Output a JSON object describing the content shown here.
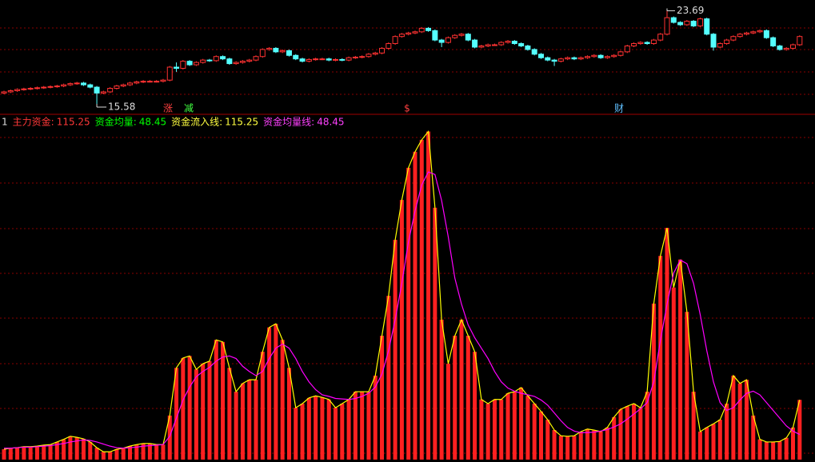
{
  "chart_data": [
    {
      "type": "candlestick",
      "ylim": [
        14.9,
        24.4
      ],
      "up_color": "#ff3232",
      "down_color": "#54ffff",
      "open": [
        16.5,
        16.6,
        16.7,
        16.8,
        16.85,
        16.9,
        16.95,
        17.0,
        17.05,
        17.1,
        17.2,
        17.3,
        17.35,
        17.2,
        17.0,
        16.5,
        16.6,
        16.9,
        17.1,
        17.2,
        17.35,
        17.45,
        17.5,
        17.5,
        17.5,
        17.6,
        18.7,
        18.6,
        19.2,
        18.9,
        19.1,
        19.3,
        19.25,
        19.6,
        19.4,
        19.0,
        19.1,
        19.2,
        19.3,
        19.6,
        20.2,
        20.3,
        20.0,
        20.1,
        19.7,
        19.4,
        19.2,
        19.35,
        19.4,
        19.4,
        19.3,
        19.35,
        19.3,
        19.5,
        19.55,
        19.6,
        19.8,
        19.9,
        20.3,
        20.7,
        21.3,
        21.5,
        21.6,
        21.7,
        22.0,
        21.8,
        21.0,
        20.8,
        21.2,
        21.4,
        21.5,
        21.0,
        20.4,
        20.5,
        20.6,
        20.6,
        20.8,
        20.9,
        20.7,
        20.5,
        20.2,
        19.8,
        19.5,
        19.3,
        19.2,
        19.4,
        19.5,
        19.4,
        19.5,
        19.6,
        19.7,
        19.5,
        19.6,
        19.7,
        20.0,
        20.5,
        20.7,
        20.8,
        20.7,
        21.0,
        21.5,
        22.9,
        22.5,
        22.3,
        22.6,
        22.2,
        22.8,
        21.5,
        20.4,
        20.7,
        21.0,
        21.3,
        21.5,
        21.6,
        21.7,
        21.8,
        21.2,
        20.5,
        20.2,
        20.3,
        20.6
      ],
      "high": [
        16.7,
        16.8,
        16.9,
        16.95,
        17.0,
        17.05,
        17.1,
        17.15,
        17.2,
        17.3,
        17.4,
        17.45,
        17.45,
        17.3,
        17.1,
        16.7,
        17.0,
        17.2,
        17.3,
        17.45,
        17.55,
        17.6,
        17.6,
        17.6,
        17.7,
        18.8,
        19.1,
        19.3,
        19.3,
        19.2,
        19.4,
        19.4,
        19.7,
        19.7,
        19.5,
        19.2,
        19.3,
        19.4,
        19.7,
        20.3,
        20.4,
        20.4,
        20.2,
        20.2,
        19.8,
        19.5,
        19.45,
        19.5,
        19.5,
        19.5,
        19.45,
        19.45,
        19.6,
        19.65,
        19.7,
        19.9,
        20.0,
        20.4,
        20.8,
        21.4,
        21.6,
        21.7,
        21.8,
        22.1,
        22.1,
        21.9,
        21.1,
        21.3,
        21.5,
        21.6,
        21.6,
        21.1,
        20.6,
        20.7,
        20.7,
        20.9,
        21.0,
        21.0,
        20.8,
        20.6,
        20.3,
        19.9,
        19.6,
        19.4,
        19.5,
        19.6,
        19.6,
        19.6,
        19.7,
        19.8,
        19.8,
        19.7,
        19.8,
        20.1,
        20.6,
        20.8,
        20.9,
        20.9,
        21.1,
        21.6,
        23.69,
        23.0,
        22.6,
        22.7,
        22.7,
        22.9,
        22.9,
        21.6,
        20.8,
        21.1,
        21.4,
        21.6,
        21.7,
        21.8,
        21.9,
        21.9,
        21.3,
        20.6,
        20.4,
        20.7,
        21.4
      ],
      "low": [
        16.4,
        16.5,
        16.6,
        16.7,
        16.75,
        16.8,
        16.85,
        16.9,
        16.95,
        17.0,
        17.1,
        17.2,
        17.1,
        16.9,
        15.58,
        16.4,
        16.5,
        16.8,
        17.0,
        17.1,
        17.25,
        17.35,
        17.4,
        17.4,
        17.4,
        17.5,
        18.3,
        18.5,
        18.8,
        18.8,
        19.0,
        19.15,
        19.15,
        19.3,
        18.9,
        18.9,
        19.0,
        19.1,
        19.2,
        19.5,
        20.1,
        19.9,
        19.9,
        19.6,
        19.3,
        19.1,
        19.1,
        19.25,
        19.3,
        19.2,
        19.2,
        19.2,
        19.2,
        19.4,
        19.45,
        19.5,
        19.7,
        19.8,
        20.2,
        20.6,
        21.2,
        21.4,
        21.5,
        21.6,
        21.7,
        20.9,
        20.4,
        20.7,
        21.1,
        21.3,
        20.9,
        20.3,
        20.3,
        20.4,
        20.5,
        20.5,
        20.7,
        20.6,
        20.4,
        20.1,
        19.7,
        19.4,
        19.2,
        18.8,
        19.1,
        19.3,
        19.3,
        19.3,
        19.4,
        19.5,
        19.4,
        19.4,
        19.5,
        19.6,
        19.9,
        20.4,
        20.6,
        20.6,
        20.6,
        20.9,
        21.4,
        22.4,
        22.2,
        22.2,
        22.1,
        22.1,
        21.4,
        20.1,
        20.3,
        20.6,
        20.9,
        21.2,
        21.4,
        21.5,
        21.6,
        21.1,
        20.4,
        20.1,
        20.1,
        20.2,
        20.5
      ],
      "close": [
        16.6,
        16.7,
        16.8,
        16.85,
        16.9,
        16.95,
        17.0,
        17.05,
        17.1,
        17.2,
        17.3,
        17.35,
        17.2,
        17.0,
        16.5,
        16.6,
        16.9,
        17.1,
        17.2,
        17.35,
        17.45,
        17.5,
        17.5,
        17.5,
        17.6,
        18.7,
        18.6,
        19.2,
        18.9,
        19.1,
        19.3,
        19.25,
        19.6,
        19.4,
        19.0,
        19.1,
        19.2,
        19.3,
        19.6,
        20.2,
        20.3,
        20.0,
        20.1,
        19.7,
        19.4,
        19.2,
        19.35,
        19.4,
        19.4,
        19.3,
        19.35,
        19.3,
        19.5,
        19.55,
        19.6,
        19.8,
        19.9,
        20.3,
        20.7,
        21.3,
        21.5,
        21.6,
        21.7,
        22.0,
        21.8,
        21.0,
        20.8,
        21.2,
        21.4,
        21.5,
        21.0,
        20.4,
        20.5,
        20.6,
        20.6,
        20.8,
        20.9,
        20.7,
        20.5,
        20.2,
        19.8,
        19.5,
        19.3,
        19.2,
        19.4,
        19.5,
        19.4,
        19.5,
        19.6,
        19.7,
        19.5,
        19.6,
        19.7,
        20.0,
        20.5,
        20.7,
        20.8,
        20.7,
        21.0,
        21.5,
        22.9,
        22.5,
        22.3,
        22.6,
        22.2,
        22.8,
        21.5,
        20.4,
        20.7,
        21.0,
        21.3,
        21.5,
        21.6,
        21.7,
        21.8,
        21.2,
        20.5,
        20.2,
        20.3,
        20.6,
        21.3
      ]
    },
    {
      "type": "bar",
      "ylim": [
        0,
        640
      ],
      "legend_prefix": "1",
      "legend": [
        {
          "label": "主力资金:",
          "value": 115.25,
          "color": "#ff3838"
        },
        {
          "label": "资金均量:",
          "value": 48.45,
          "color": "#00ff00"
        },
        {
          "label": "资金流入线:",
          "value": 115.25,
          "color": "#ffff40"
        },
        {
          "label": "资金均量线:",
          "value": 48.45,
          "color": "#ff40ff"
        }
      ],
      "series": [
        {
          "kind": "bar",
          "color": "#ff2020",
          "values": [
            20,
            22,
            23,
            25,
            25,
            26,
            28,
            29,
            34,
            39,
            45,
            43,
            40,
            34,
            23,
            15,
            15,
            20,
            22,
            26,
            29,
            31,
            31,
            29,
            29,
            85,
            177,
            196,
            200,
            174,
            185,
            190,
            231,
            227,
            177,
            131,
            147,
            154,
            154,
            208,
            255,
            262,
            231,
            177,
            100,
            108,
            119,
            123,
            120,
            116,
            100,
            108,
            116,
            131,
            131,
            131,
            162,
            239,
            316,
            424,
            501,
            563,
            594,
            617,
            633,
            486,
            270,
            185,
            239,
            270,
            239,
            208,
            116,
            108,
            116,
            116,
            128,
            131,
            139,
            123,
            108,
            93,
            77,
            57,
            46,
            45,
            46,
            54,
            59,
            57,
            54,
            62,
            82,
            97,
            103,
            108,
            100,
            131,
            301,
            393,
            447,
            332,
            386,
            285,
            131,
            54,
            62,
            69,
            77,
            108,
            162,
            147,
            154,
            85,
            39,
            34,
            34,
            35,
            42,
            62,
            115.25
          ]
        },
        {
          "kind": "line",
          "color": "#ffff00",
          "values": [
            20,
            22,
            23,
            25,
            25,
            26,
            28,
            29,
            34,
            39,
            45,
            43,
            40,
            34,
            23,
            15,
            15,
            20,
            22,
            26,
            29,
            31,
            31,
            29,
            29,
            85,
            177,
            196,
            200,
            174,
            185,
            190,
            231,
            227,
            177,
            131,
            147,
            154,
            154,
            208,
            255,
            262,
            231,
            177,
            100,
            108,
            119,
            123,
            120,
            116,
            100,
            108,
            116,
            131,
            131,
            131,
            162,
            239,
            316,
            424,
            501,
            563,
            594,
            617,
            633,
            486,
            270,
            185,
            239,
            270,
            239,
            208,
            116,
            108,
            116,
            116,
            128,
            131,
            139,
            123,
            108,
            93,
            77,
            57,
            46,
            45,
            46,
            54,
            59,
            57,
            54,
            62,
            82,
            97,
            103,
            108,
            100,
            131,
            301,
            393,
            447,
            332,
            386,
            285,
            131,
            54,
            62,
            69,
            77,
            108,
            162,
            147,
            154,
            85,
            39,
            34,
            34,
            35,
            42,
            62,
            115.25
          ]
        },
        {
          "kind": "line",
          "color": "#ff00ff",
          "values": [
            22,
            22,
            23,
            24,
            24,
            25,
            26,
            27,
            29,
            31,
            34,
            36,
            38,
            37,
            34,
            30,
            26,
            23,
            22,
            23,
            24,
            26,
            27,
            28,
            29,
            45,
            80,
            115,
            140,
            160,
            170,
            178,
            190,
            198,
            200,
            195,
            180,
            170,
            162,
            170,
            195,
            215,
            223,
            215,
            195,
            170,
            150,
            135,
            125,
            122,
            118,
            117,
            116,
            118,
            122,
            128,
            140,
            165,
            210,
            270,
            340,
            420,
            480,
            530,
            555,
            550,
            500,
            430,
            350,
            300,
            260,
            235,
            215,
            195,
            170,
            150,
            138,
            132,
            128,
            125,
            122,
            115,
            105,
            90,
            75,
            62,
            55,
            52,
            52,
            53,
            55,
            58,
            63,
            69,
            78,
            88,
            98,
            110,
            150,
            230,
            300,
            360,
            385,
            378,
            340,
            280,
            210,
            150,
            110,
            95,
            100,
            115,
            128,
            132,
            125,
            110,
            95,
            80,
            65,
            55,
            48.45
          ]
        }
      ]
    }
  ],
  "markers": [
    "涨",
    "减",
    "$",
    "财"
  ]
}
